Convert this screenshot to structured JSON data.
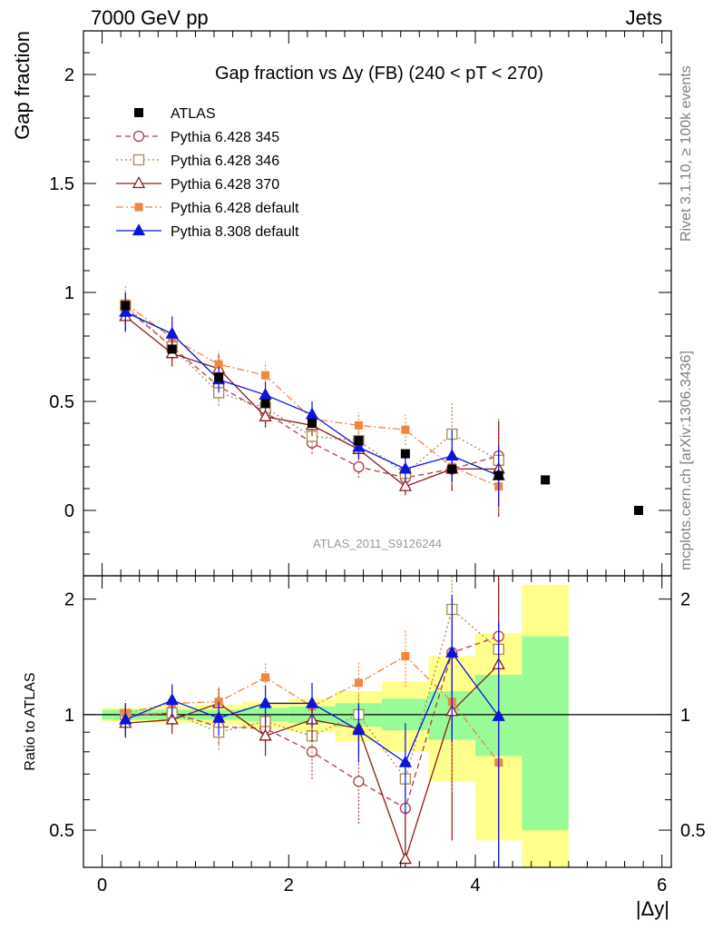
{
  "header": {
    "left": "7000 GeV pp",
    "right": "Jets"
  },
  "side_text": {
    "rivet": "Rivet 3.1.10, ≥ 100k events",
    "source": "mcplots.cern.ch [arXiv:1306.3436]"
  },
  "watermark": "ATLAS_2011_S9126244",
  "colors": {
    "atlas": "#000000",
    "p345": "#b03a48",
    "p346": "#a88a4a",
    "p370": "#8b1a1a",
    "pdefault": "#f5843c",
    "p8": "#0a14dc",
    "band_inner": "#98fb98",
    "band_outer": "#ffff8c"
  },
  "chart_data": [
    {
      "type": "scatter",
      "title": "Gap fraction vs Δy (FB) (240 < pT < 270)",
      "ylabel": "Gap fraction",
      "xlim": [
        -0.2,
        6.1
      ],
      "ylim": [
        -0.3,
        2.2
      ],
      "yticks": [
        0,
        0.5,
        1,
        1.5,
        2
      ],
      "ytick_labels": [
        "0",
        "0.5",
        "1",
        "1.5",
        "2"
      ],
      "legend_position": "top-left",
      "series": [
        {
          "name": "ATLAS",
          "style": "data",
          "x": [
            0.25,
            0.75,
            1.25,
            1.75,
            2.25,
            2.75,
            3.25,
            3.75,
            4.25,
            4.75,
            5.75
          ],
          "y": [
            0.94,
            0.74,
            0.61,
            0.49,
            0.4,
            0.32,
            0.26,
            0.19,
            0.16,
            0.14,
            0.0
          ]
        },
        {
          "name": "Pythia 6.428 345",
          "style": "circle",
          "x": [
            0.25,
            0.75,
            1.25,
            1.75,
            2.25,
            2.75,
            3.25,
            3.75,
            4.25
          ],
          "y": [
            0.93,
            0.75,
            0.57,
            0.45,
            0.31,
            0.2,
            0.15,
            0.19,
            0.25
          ],
          "err": [
            0.07,
            0.06,
            0.06,
            0.05,
            0.05,
            0.05,
            0.05,
            0.1,
            0.17
          ]
        },
        {
          "name": "Pythia 6.428 346",
          "style": "square-open",
          "x": [
            0.25,
            0.75,
            1.25,
            1.75,
            2.25,
            2.75,
            3.25,
            3.75,
            4.25
          ],
          "y": [
            0.94,
            0.75,
            0.54,
            0.47,
            0.34,
            0.32,
            0.17,
            0.35,
            0.23
          ],
          "err": [
            0.07,
            0.06,
            0.06,
            0.05,
            0.05,
            0.05,
            0.06,
            0.15,
            0.15
          ]
        },
        {
          "name": "Pythia 6.428 370",
          "style": "triangle-open",
          "x": [
            0.25,
            0.75,
            1.25,
            1.75,
            2.25,
            2.75,
            3.25,
            3.75,
            4.25
          ],
          "y": [
            0.89,
            0.72,
            0.65,
            0.43,
            0.39,
            0.28,
            0.11,
            0.19,
            0.19
          ],
          "err": [
            0.07,
            0.06,
            0.07,
            0.05,
            0.05,
            0.05,
            0.04,
            0.1,
            0.22
          ]
        },
        {
          "name": "Pythia 6.428 default",
          "style": "square-filled",
          "x": [
            0.25,
            0.75,
            1.25,
            1.75,
            2.25,
            2.75,
            3.25,
            3.75,
            4.25
          ],
          "y": [
            0.95,
            0.79,
            0.67,
            0.62,
            0.42,
            0.39,
            0.37,
            0.2,
            0.11
          ],
          "err": [
            0.08,
            0.07,
            0.06,
            0.06,
            0.06,
            0.06,
            0.07,
            0.08,
            0.12
          ]
        },
        {
          "name": "Pythia 8.308 default",
          "style": "triangle-filled",
          "x": [
            0.25,
            0.75,
            1.25,
            1.75,
            2.25,
            2.75,
            3.25,
            3.75,
            4.25
          ],
          "y": [
            0.91,
            0.81,
            0.6,
            0.53,
            0.44,
            0.29,
            0.19,
            0.25,
            0.16
          ],
          "err": [
            0.09,
            0.08,
            0.06,
            0.06,
            0.06,
            0.05,
            0.05,
            0.12,
            0.14
          ]
        }
      ]
    },
    {
      "type": "scatter",
      "ylabel": "Ratio to ATLAS",
      "xlabel": "|Δy|",
      "xlim": [
        -0.2,
        6.1
      ],
      "ylim": [
        0.4,
        2.3
      ],
      "yscale": "log",
      "yticks": [
        0.5,
        1,
        2
      ],
      "ytick_labels": [
        "0.5",
        "1",
        "2"
      ],
      "xticks": [
        0,
        2,
        4,
        6
      ],
      "xtick_labels": [
        "0",
        "2",
        "4",
        "6"
      ],
      "reference_line": 1,
      "bands": [
        {
          "x0": 0.0,
          "x1": 0.5,
          "inner": [
            0.97,
            1.03
          ],
          "outer": [
            0.96,
            1.04
          ]
        },
        {
          "x0": 0.5,
          "x1": 1.0,
          "inner": [
            0.97,
            1.03
          ],
          "outer": [
            0.95,
            1.05
          ]
        },
        {
          "x0": 1.0,
          "x1": 1.5,
          "inner": [
            0.97,
            1.03
          ],
          "outer": [
            0.94,
            1.06
          ]
        },
        {
          "x0": 1.5,
          "x1": 2.0,
          "inner": [
            0.96,
            1.04
          ],
          "outer": [
            0.92,
            1.08
          ]
        },
        {
          "x0": 2.0,
          "x1": 2.5,
          "inner": [
            0.95,
            1.05
          ],
          "outer": [
            0.9,
            1.1
          ]
        },
        {
          "x0": 2.5,
          "x1": 3.0,
          "inner": [
            0.93,
            1.07
          ],
          "outer": [
            0.85,
            1.15
          ]
        },
        {
          "x0": 3.0,
          "x1": 3.5,
          "inner": [
            0.91,
            1.1
          ],
          "outer": [
            0.8,
            1.22
          ]
        },
        {
          "x0": 3.5,
          "x1": 4.0,
          "inner": [
            0.86,
            1.15
          ],
          "outer": [
            0.67,
            1.42
          ]
        },
        {
          "x0": 4.0,
          "x1": 4.5,
          "inner": [
            0.78,
            1.27
          ],
          "outer": [
            0.47,
            1.63
          ]
        },
        {
          "x0": 4.5,
          "x1": 5.0,
          "inner": [
            0.5,
            1.6
          ],
          "outer": [
            0.4,
            2.18
          ]
        }
      ],
      "series": [
        {
          "name": "Pythia 6.428 345",
          "style": "circle",
          "x": [
            0.25,
            0.75,
            1.25,
            1.75,
            2.25,
            2.75,
            3.25,
            3.75,
            4.25
          ],
          "y": [
            0.99,
            1.01,
            0.93,
            0.92,
            0.8,
            0.67,
            0.57,
            1.45,
            1.6
          ],
          "err": [
            0.07,
            0.08,
            0.09,
            0.11,
            0.12,
            0.15,
            0.18,
            0.55,
            0.8
          ]
        },
        {
          "name": "Pythia 6.428 346",
          "style": "square-open",
          "x": [
            0.25,
            0.75,
            1.25,
            1.75,
            2.25,
            2.75,
            3.25,
            3.75,
            4.25
          ],
          "y": [
            1.0,
            1.01,
            0.9,
            0.96,
            0.88,
            1.0,
            0.68,
            1.88,
            1.48
          ],
          "err": [
            0.07,
            0.08,
            0.09,
            0.1,
            0.12,
            0.14,
            0.2,
            0.7,
            0.9
          ]
        },
        {
          "name": "Pythia 6.428 370",
          "style": "triangle-open",
          "x": [
            0.25,
            0.75,
            1.25,
            1.75,
            2.25,
            2.75,
            3.25,
            3.75,
            4.25
          ],
          "y": [
            0.95,
            0.97,
            1.07,
            0.88,
            0.97,
            0.92,
            0.42,
            1.02,
            1.35
          ],
          "err": [
            0.07,
            0.08,
            0.1,
            0.1,
            0.12,
            0.14,
            0.14,
            0.55,
            1.1
          ]
        },
        {
          "name": "Pythia 6.428 default",
          "style": "square-filled",
          "x": [
            0.25,
            0.75,
            1.25,
            1.75,
            2.25,
            2.75,
            3.25,
            3.75,
            4.25
          ],
          "y": [
            1.01,
            1.07,
            1.08,
            1.25,
            1.05,
            1.21,
            1.42,
            1.08,
            0.75
          ],
          "err": [
            0.08,
            0.09,
            0.1,
            0.12,
            0.14,
            0.17,
            0.24,
            0.45,
            0.7
          ]
        },
        {
          "name": "Pythia 8.308 default",
          "style": "triangle-filled",
          "x": [
            0.25,
            0.75,
            1.25,
            1.75,
            2.25,
            2.75,
            3.25,
            3.75,
            4.25
          ],
          "y": [
            0.97,
            1.09,
            0.98,
            1.07,
            1.07,
            0.91,
            0.75,
            1.45,
            0.99
          ],
          "err": [
            0.1,
            0.11,
            0.1,
            0.12,
            0.14,
            0.16,
            0.2,
            0.6,
            0.75
          ]
        }
      ]
    }
  ]
}
